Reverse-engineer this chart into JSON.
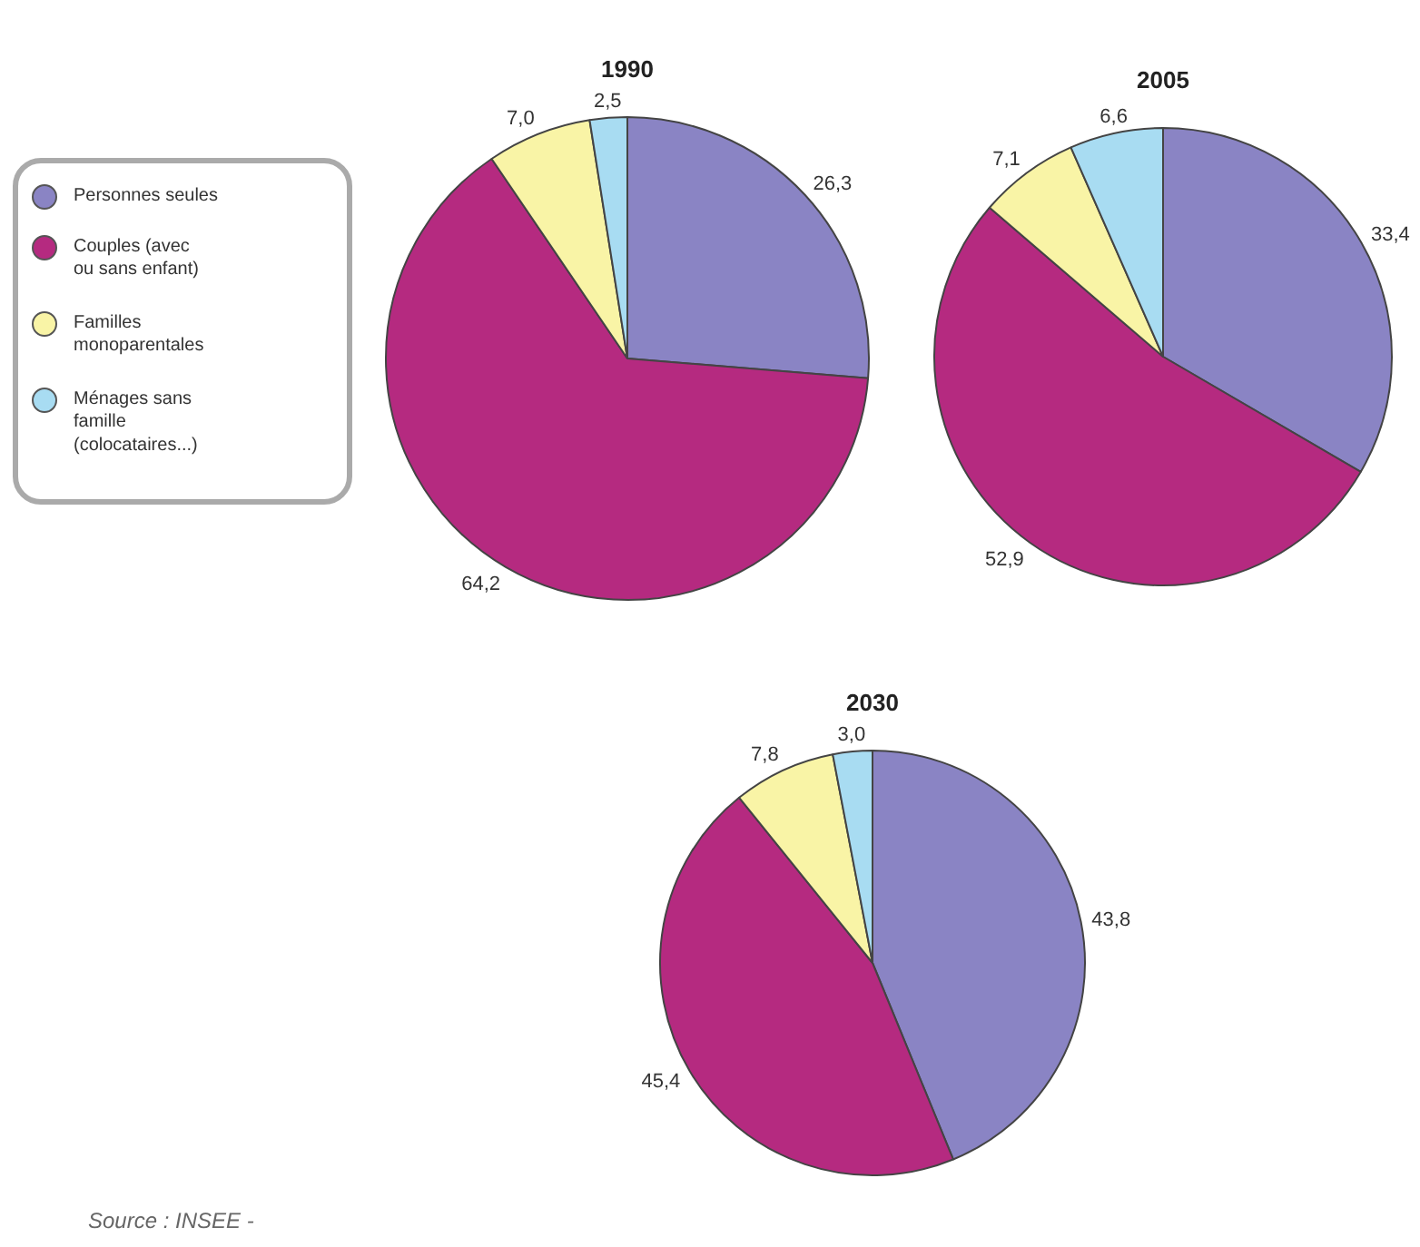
{
  "chart_data": [
    {
      "type": "pie",
      "title": "1990",
      "categories": [
        "Personnes seules",
        "Couples (avec ou sans enfant)",
        "Familles monoparentales",
        "Ménages sans famille (colocataires...)"
      ],
      "values": [
        26.3,
        64.2,
        7.0,
        2.5
      ],
      "value_labels": [
        "26,3",
        "64,2",
        "7,0",
        "2,5"
      ],
      "colors": [
        "#8a84c4",
        "#b52a80",
        "#f9f4a6",
        "#a8dcf2"
      ],
      "legend": "left"
    },
    {
      "type": "pie",
      "title": "2005",
      "categories": [
        null,
        null,
        null,
        null
      ],
      "values": [
        33.4,
        52.9,
        7.1,
        6.6
      ],
      "value_labels": [
        "33,4",
        "52,9",
        "7,1",
        "6,6"
      ],
      "colors": [
        "#8a84c4",
        "#b52a80",
        "#f9f4a6",
        "#a8dcf2"
      ]
    },
    {
      "type": "pie",
      "title": "2030",
      "categories": [
        null,
        null,
        null,
        null
      ],
      "values": [
        43.8,
        45.4,
        7.8,
        3.0
      ],
      "value_labels": [
        "43,8",
        "45,4",
        "7,8",
        "3,0"
      ],
      "colors": [
        "#8a84c4",
        "#b52a80",
        "#f9f4a6",
        "#a8dcf2"
      ],
      "annotations": [
        "Source  :  INSEE -"
      ]
    }
  ]
}
